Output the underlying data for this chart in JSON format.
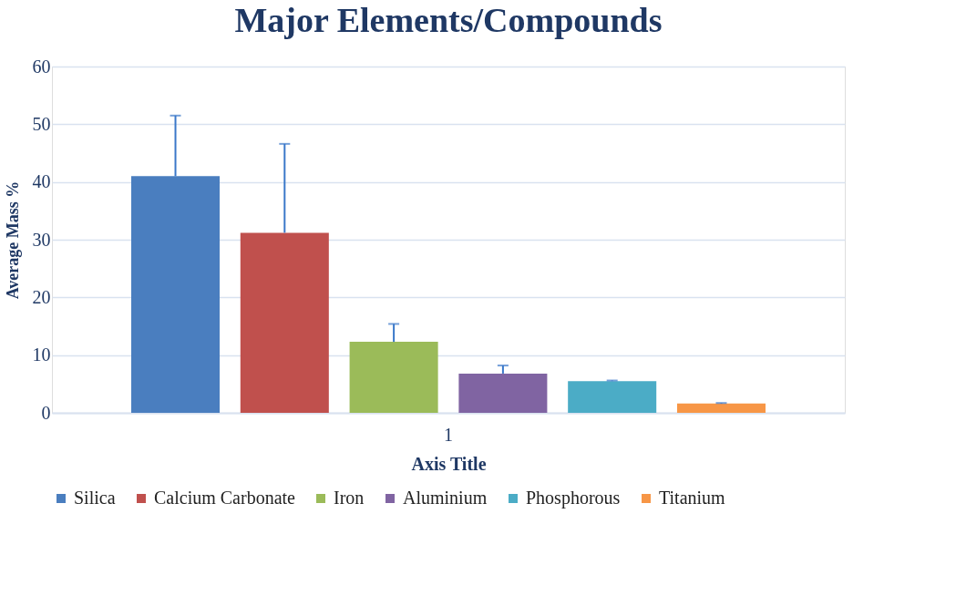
{
  "chart_data": {
    "type": "bar",
    "title": "Major Elements/Compounds",
    "xlabel": "Axis Title",
    "ylabel": "Average Mass %",
    "categories": [
      "1"
    ],
    "series": [
      {
        "name": "Silica",
        "color": "#4a7ebf",
        "values": [
          41.0
        ],
        "errors": [
          [
            41.0,
            51.5
          ]
        ]
      },
      {
        "name": "Calcium Carbonate",
        "color": "#c0504d",
        "values": [
          31.2
        ],
        "errors": [
          [
            31.2,
            46.6
          ]
        ]
      },
      {
        "name": "Iron",
        "color": "#9bbb59",
        "values": [
          12.3
        ],
        "errors": [
          [
            12.3,
            15.4
          ]
        ]
      },
      {
        "name": "Aluminium",
        "color": "#8064a2",
        "values": [
          6.8
        ],
        "errors": [
          [
            6.8,
            8.2
          ]
        ]
      },
      {
        "name": "Phosphorous",
        "color": "#4bacc6",
        "values": [
          5.5
        ],
        "errors": [
          [
            5.5,
            5.6
          ]
        ]
      },
      {
        "name": "Titanium",
        "color": "#f79646",
        "values": [
          1.6
        ],
        "errors": [
          [
            1.6,
            1.7
          ]
        ]
      }
    ],
    "ylim": [
      0,
      60
    ],
    "yticks": [
      0,
      10,
      20,
      30,
      40,
      50,
      60
    ],
    "grid": "y",
    "legend": "bottom"
  }
}
